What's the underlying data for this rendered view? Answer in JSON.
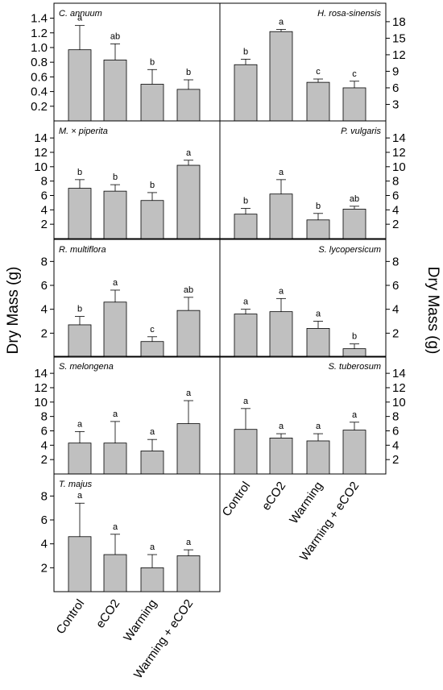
{
  "figure": {
    "ylabel_left": "Dry Mass (g)",
    "ylabel_right": "Dry Mass (g)",
    "categories": [
      "Control",
      "eCO2",
      "Warming",
      "Warming + eCO2"
    ],
    "bar_color": "#c0c0c0",
    "bar_edge_color": "#000000"
  },
  "chart_data": [
    {
      "type": "bar",
      "title": "C. annuum",
      "position": "left",
      "row": 0,
      "categories": [
        "Control",
        "eCO2",
        "Warming",
        "Warming + eCO2"
      ],
      "values": [
        0.97,
        0.83,
        0.5,
        0.43
      ],
      "errors": [
        0.33,
        0.22,
        0.2,
        0.13
      ],
      "letters": [
        "a",
        "ab",
        "b",
        "b"
      ],
      "ylim": [
        0,
        1.45
      ],
      "yticks": [
        0.2,
        0.4,
        0.6,
        0.8,
        1.0,
        1.2,
        1.4
      ],
      "ytick_labels": [
        "0.2",
        "0.4",
        "0.6",
        "0.8",
        "1.0",
        "1.2",
        "1.4"
      ]
    },
    {
      "type": "bar",
      "title": "H. rosa-sinensis",
      "position": "right",
      "row": 0,
      "categories": [
        "Control",
        "eCO2",
        "Warming",
        "Warming + eCO2"
      ],
      "values": [
        10.2,
        16.2,
        7.0,
        6.0
      ],
      "errors": [
        1.0,
        0.4,
        0.6,
        1.2
      ],
      "letters": [
        "b",
        "a",
        "c",
        "c"
      ],
      "ylim": [
        0,
        19.3
      ],
      "yticks": [
        3,
        6,
        9,
        12,
        15,
        18
      ],
      "ytick_labels": [
        "3",
        "6",
        "9",
        "12",
        "15",
        "18"
      ]
    },
    {
      "type": "bar",
      "title": "M. × piperita",
      "position": "left",
      "row": 1,
      "categories": [
        "Control",
        "eCO2",
        "Warming",
        "Warming + eCO2"
      ],
      "values": [
        7.0,
        6.6,
        5.3,
        10.2
      ],
      "errors": [
        1.2,
        0.9,
        1.1,
        0.7
      ],
      "letters": [
        "b",
        "b",
        "b",
        "a"
      ],
      "ylim": [
        0,
        14.8
      ],
      "yticks": [
        2,
        4,
        6,
        8,
        10,
        12,
        14
      ],
      "ytick_labels": [
        "2",
        "4",
        "6",
        "8",
        "10",
        "12",
        "14"
      ]
    },
    {
      "type": "bar",
      "title": "P. vulgaris",
      "position": "right",
      "row": 1,
      "categories": [
        "Control",
        "eCO2",
        "Warming",
        "Warming + eCO2"
      ],
      "values": [
        3.4,
        6.2,
        2.6,
        4.1
      ],
      "errors": [
        0.8,
        2.0,
        0.9,
        0.4
      ],
      "letters": [
        "b",
        "a",
        "b",
        "ab"
      ],
      "ylim": [
        0,
        14.8
      ],
      "yticks": [
        2,
        4,
        6,
        8,
        10,
        12,
        14
      ],
      "ytick_labels": [
        "2",
        "4",
        "6",
        "8",
        "10",
        "12",
        "14"
      ]
    },
    {
      "type": "bar",
      "title": "R. multiflora",
      "position": "left",
      "row": 2,
      "categories": [
        "Control",
        "eCO2",
        "Warming",
        "Warming + eCO2"
      ],
      "values": [
        2.7,
        4.6,
        1.3,
        3.9
      ],
      "errors": [
        0.7,
        1.0,
        0.4,
        1.1
      ],
      "letters": [
        "b",
        "a",
        "c",
        "ab"
      ],
      "ylim": [
        0,
        8.9
      ],
      "yticks": [
        2,
        4,
        6,
        8
      ],
      "ytick_labels": [
        "2",
        "4",
        "6",
        "8"
      ]
    },
    {
      "type": "bar",
      "title": "S. lycopersicum",
      "position": "right",
      "row": 2,
      "categories": [
        "Control",
        "eCO2",
        "Warming",
        "Warming + eCO2"
      ],
      "values": [
        3.6,
        3.8,
        2.4,
        0.7
      ],
      "errors": [
        0.4,
        1.1,
        0.6,
        0.4
      ],
      "letters": [
        "a",
        "a",
        "a",
        "b"
      ],
      "ylim": [
        0,
        8.9
      ],
      "yticks": [
        2,
        4,
        6,
        8
      ],
      "ytick_labels": [
        "2",
        "4",
        "6",
        "8"
      ]
    },
    {
      "type": "bar",
      "title": "S. melongena",
      "position": "left",
      "row": 3,
      "categories": [
        "Control",
        "eCO2",
        "Warming",
        "Warming + eCO2"
      ],
      "values": [
        4.3,
        4.3,
        3.2,
        7.0
      ],
      "errors": [
        1.6,
        3.0,
        1.6,
        3.2
      ],
      "letters": [
        "a",
        "a",
        "a",
        "a"
      ],
      "ylim": [
        0,
        14.8
      ],
      "yticks": [
        2,
        4,
        6,
        8,
        10,
        12,
        14
      ],
      "ytick_labels": [
        "2",
        "4",
        "6",
        "8",
        "10",
        "12",
        "14"
      ]
    },
    {
      "type": "bar",
      "title": "S. tuberosum",
      "position": "right",
      "row": 3,
      "categories": [
        "Control",
        "eCO2",
        "Warming",
        "Warming + eCO2"
      ],
      "values": [
        6.2,
        5.0,
        4.6,
        6.1
      ],
      "errors": [
        2.9,
        0.6,
        1.0,
        1.1
      ],
      "letters": [
        "a",
        "a",
        "a",
        "a"
      ],
      "ylim": [
        0,
        14.8
      ],
      "yticks": [
        2,
        4,
        6,
        8,
        10,
        12,
        14
      ],
      "ytick_labels": [
        "2",
        "4",
        "6",
        "8",
        "10",
        "12",
        "14"
      ]
    },
    {
      "type": "bar",
      "title": "T. majus",
      "position": "left",
      "row": 4,
      "categories": [
        "Control",
        "eCO2",
        "Warming",
        "Warming + eCO2"
      ],
      "values": [
        4.6,
        3.1,
        2.0,
        3.0
      ],
      "errors": [
        2.8,
        1.7,
        1.1,
        0.5
      ],
      "letters": [
        "a",
        "a",
        "a",
        "a"
      ],
      "ylim": [
        0,
        8.9
      ],
      "yticks": [
        2,
        4,
        6,
        8
      ],
      "ytick_labels": [
        "2",
        "4",
        "6",
        "8"
      ]
    }
  ]
}
